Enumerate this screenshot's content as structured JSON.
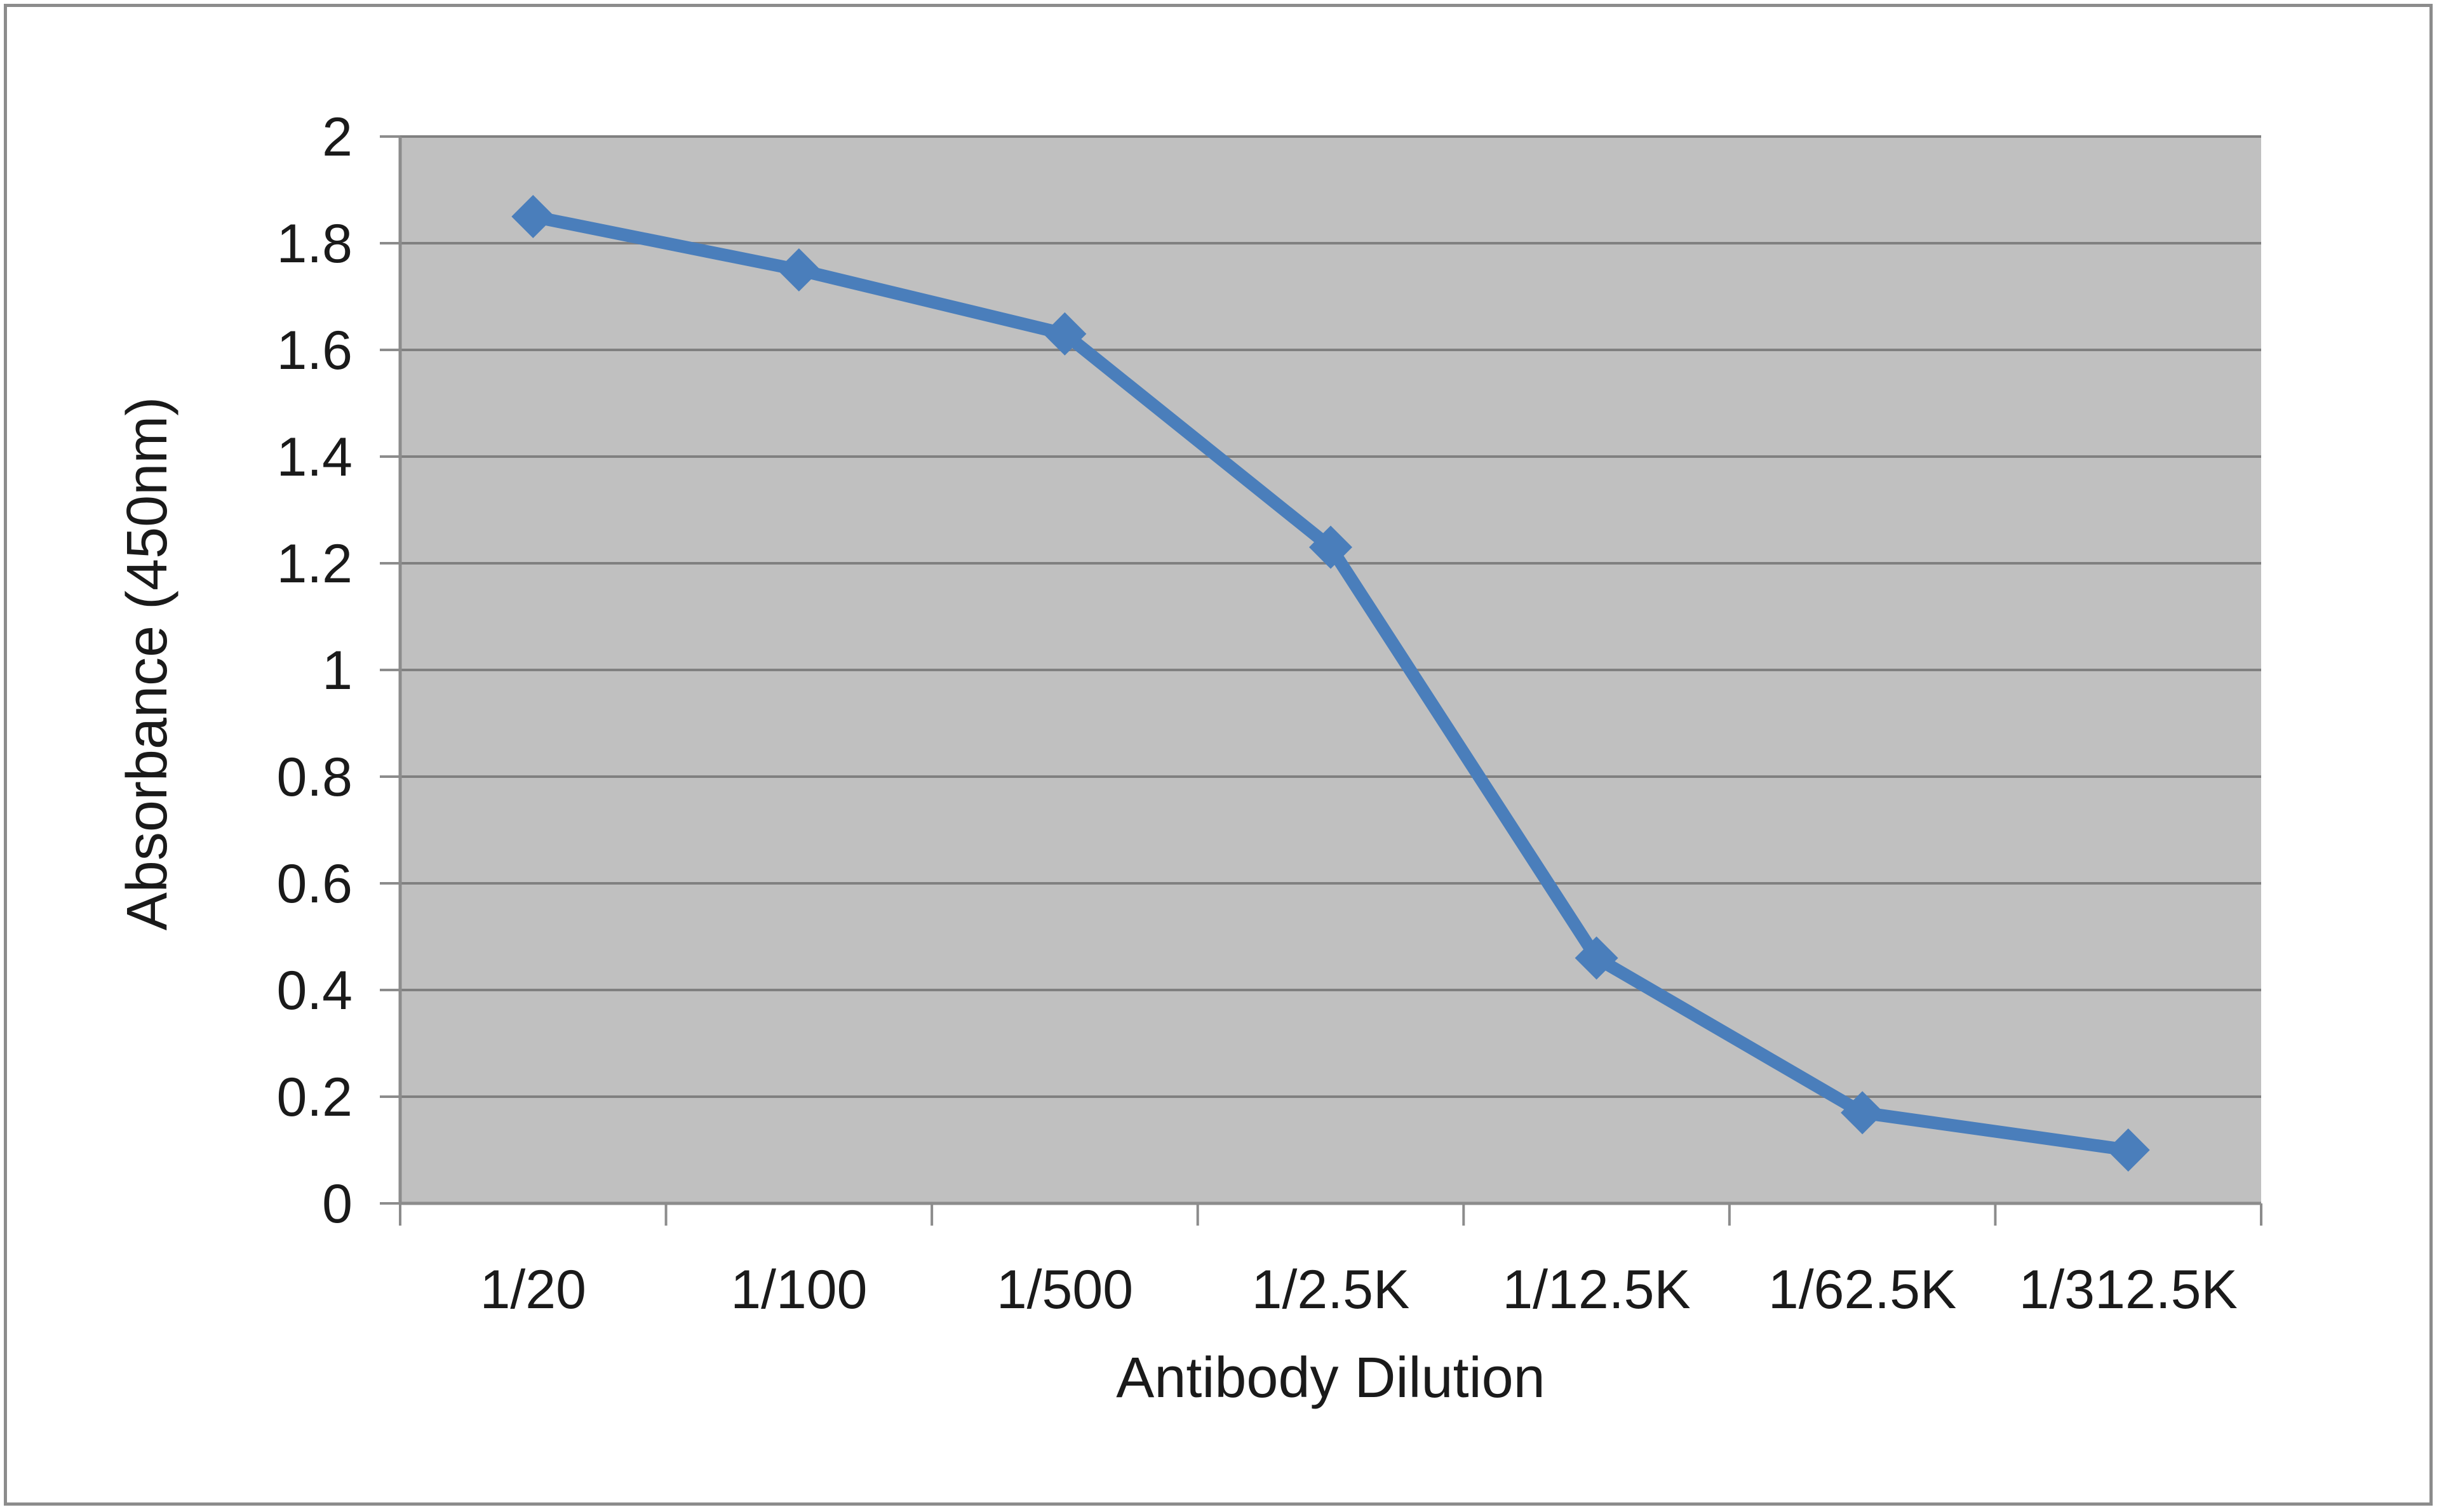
{
  "chart_data": {
    "type": "line",
    "xlabel": "Antibody Dilution",
    "ylabel": "Absorbance (450nm)",
    "categories": [
      "1/20",
      "1/100",
      "1/500",
      "1/2.5K",
      "1/12.5K",
      "1/62.5K",
      "1/312.5K"
    ],
    "series": [
      {
        "values": [
          1.85,
          1.75,
          1.63,
          1.23,
          0.46,
          0.17,
          0.1
        ]
      }
    ],
    "ylim": [
      0,
      2
    ],
    "yticks": [
      "0",
      "0.2",
      "0.4",
      "0.6",
      "0.8",
      "1",
      "1.2",
      "1.4",
      "1.6",
      "1.8",
      "2"
    ],
    "grid": true,
    "legend": "none",
    "colors": {
      "plot_background": "#c0c0c0",
      "gridline": "#808080",
      "series": "#4a7ebb"
    }
  }
}
